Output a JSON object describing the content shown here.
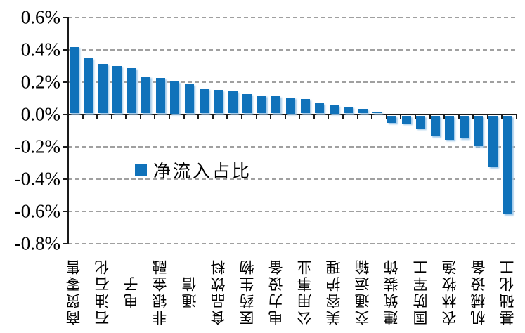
{
  "chart_data": {
    "type": "bar",
    "title": "",
    "legend": {
      "label": "净流入占比",
      "position": "inside-left-middle"
    },
    "ylim": [
      -0.8,
      0.6
    ],
    "ytick_labels": [
      "0.6%",
      "0.4%",
      "0.2%",
      "0.0%",
      "-0.2%",
      "-0.4%",
      "-0.6%",
      "-0.8%"
    ],
    "ytick_values": [
      0.6,
      0.4,
      0.2,
      0.0,
      -0.2,
      -0.4,
      -0.6,
      -0.8
    ],
    "grid": "horizontal-dashed",
    "unit": "%",
    "categories": [
      "商贸零售",
      "",
      "石油石化",
      "",
      "电子",
      "",
      "非银金融",
      "",
      "通信",
      "",
      "食品饮料",
      "",
      "医药生物",
      "",
      "电力设备",
      "",
      "公用事业",
      "",
      "美容护理",
      "",
      "交通运输",
      "",
      "建筑装饰",
      "",
      "国防军工",
      "",
      "农林牧渔",
      "",
      "机械设备",
      "",
      "基础化工"
    ],
    "values": [
      0.41,
      0.34,
      0.305,
      0.295,
      0.28,
      0.23,
      0.22,
      0.2,
      0.18,
      0.155,
      0.145,
      0.135,
      0.12,
      0.11,
      0.105,
      0.1,
      0.09,
      0.065,
      0.05,
      0.04,
      0.03,
      0.01,
      -0.045,
      -0.05,
      -0.08,
      -0.13,
      -0.15,
      -0.14,
      -0.19,
      -0.32,
      -0.61
    ],
    "colors": {
      "bar": "#1072BA",
      "bar_shadow": "#96C3E8",
      "axis": "#1A1A1A",
      "grid": "#A0A0A0",
      "text": "#000000"
    }
  }
}
